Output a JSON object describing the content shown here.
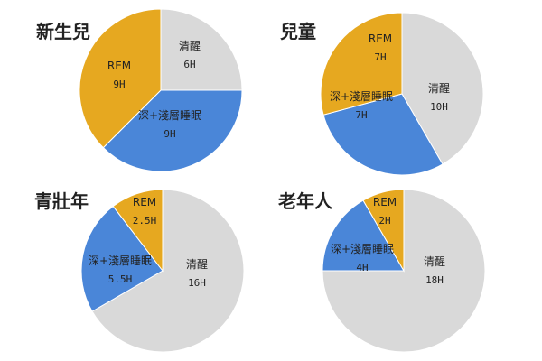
{
  "chart_data": [
    {
      "type": "pie",
      "title": "新生兒",
      "slices": [
        {
          "label": "清醒",
          "value_label": "6H",
          "value": 6,
          "color": "#d9d9d9"
        },
        {
          "label": "深+淺層睡眠",
          "value_label": "9H",
          "value": 9,
          "color": "#4a86d8"
        },
        {
          "label": "REM",
          "value_label": "9H",
          "value": 9,
          "color": "#e6a820"
        }
      ]
    },
    {
      "type": "pie",
      "title": "兒童",
      "slices": [
        {
          "label": "清醒",
          "value_label": "10H",
          "value": 10,
          "color": "#d9d9d9"
        },
        {
          "label": "深+淺層睡眠",
          "value_label": "7H",
          "value": 7,
          "color": "#4a86d8"
        },
        {
          "label": "REM",
          "value_label": "7H",
          "value": 7,
          "color": "#e6a820"
        }
      ]
    },
    {
      "type": "pie",
      "title": "青壯年",
      "slices": [
        {
          "label": "清醒",
          "value_label": "16H",
          "value": 16,
          "color": "#d9d9d9"
        },
        {
          "label": "深+淺層睡眠",
          "value_label": "5.5H",
          "value": 5.5,
          "color": "#4a86d8"
        },
        {
          "label": "REM",
          "value_label": "2.5H",
          "value": 2.5,
          "color": "#e6a820"
        }
      ]
    },
    {
      "type": "pie",
      "title": "老年人",
      "slices": [
        {
          "label": "清醒",
          "value_label": "18H",
          "value": 18,
          "color": "#d9d9d9"
        },
        {
          "label": "深+淺層睡眠",
          "value_label": "4H",
          "value": 4,
          "color": "#4a86d8"
        },
        {
          "label": "REM",
          "value_label": "2H",
          "value": 2,
          "color": "#e6a820"
        }
      ]
    }
  ]
}
